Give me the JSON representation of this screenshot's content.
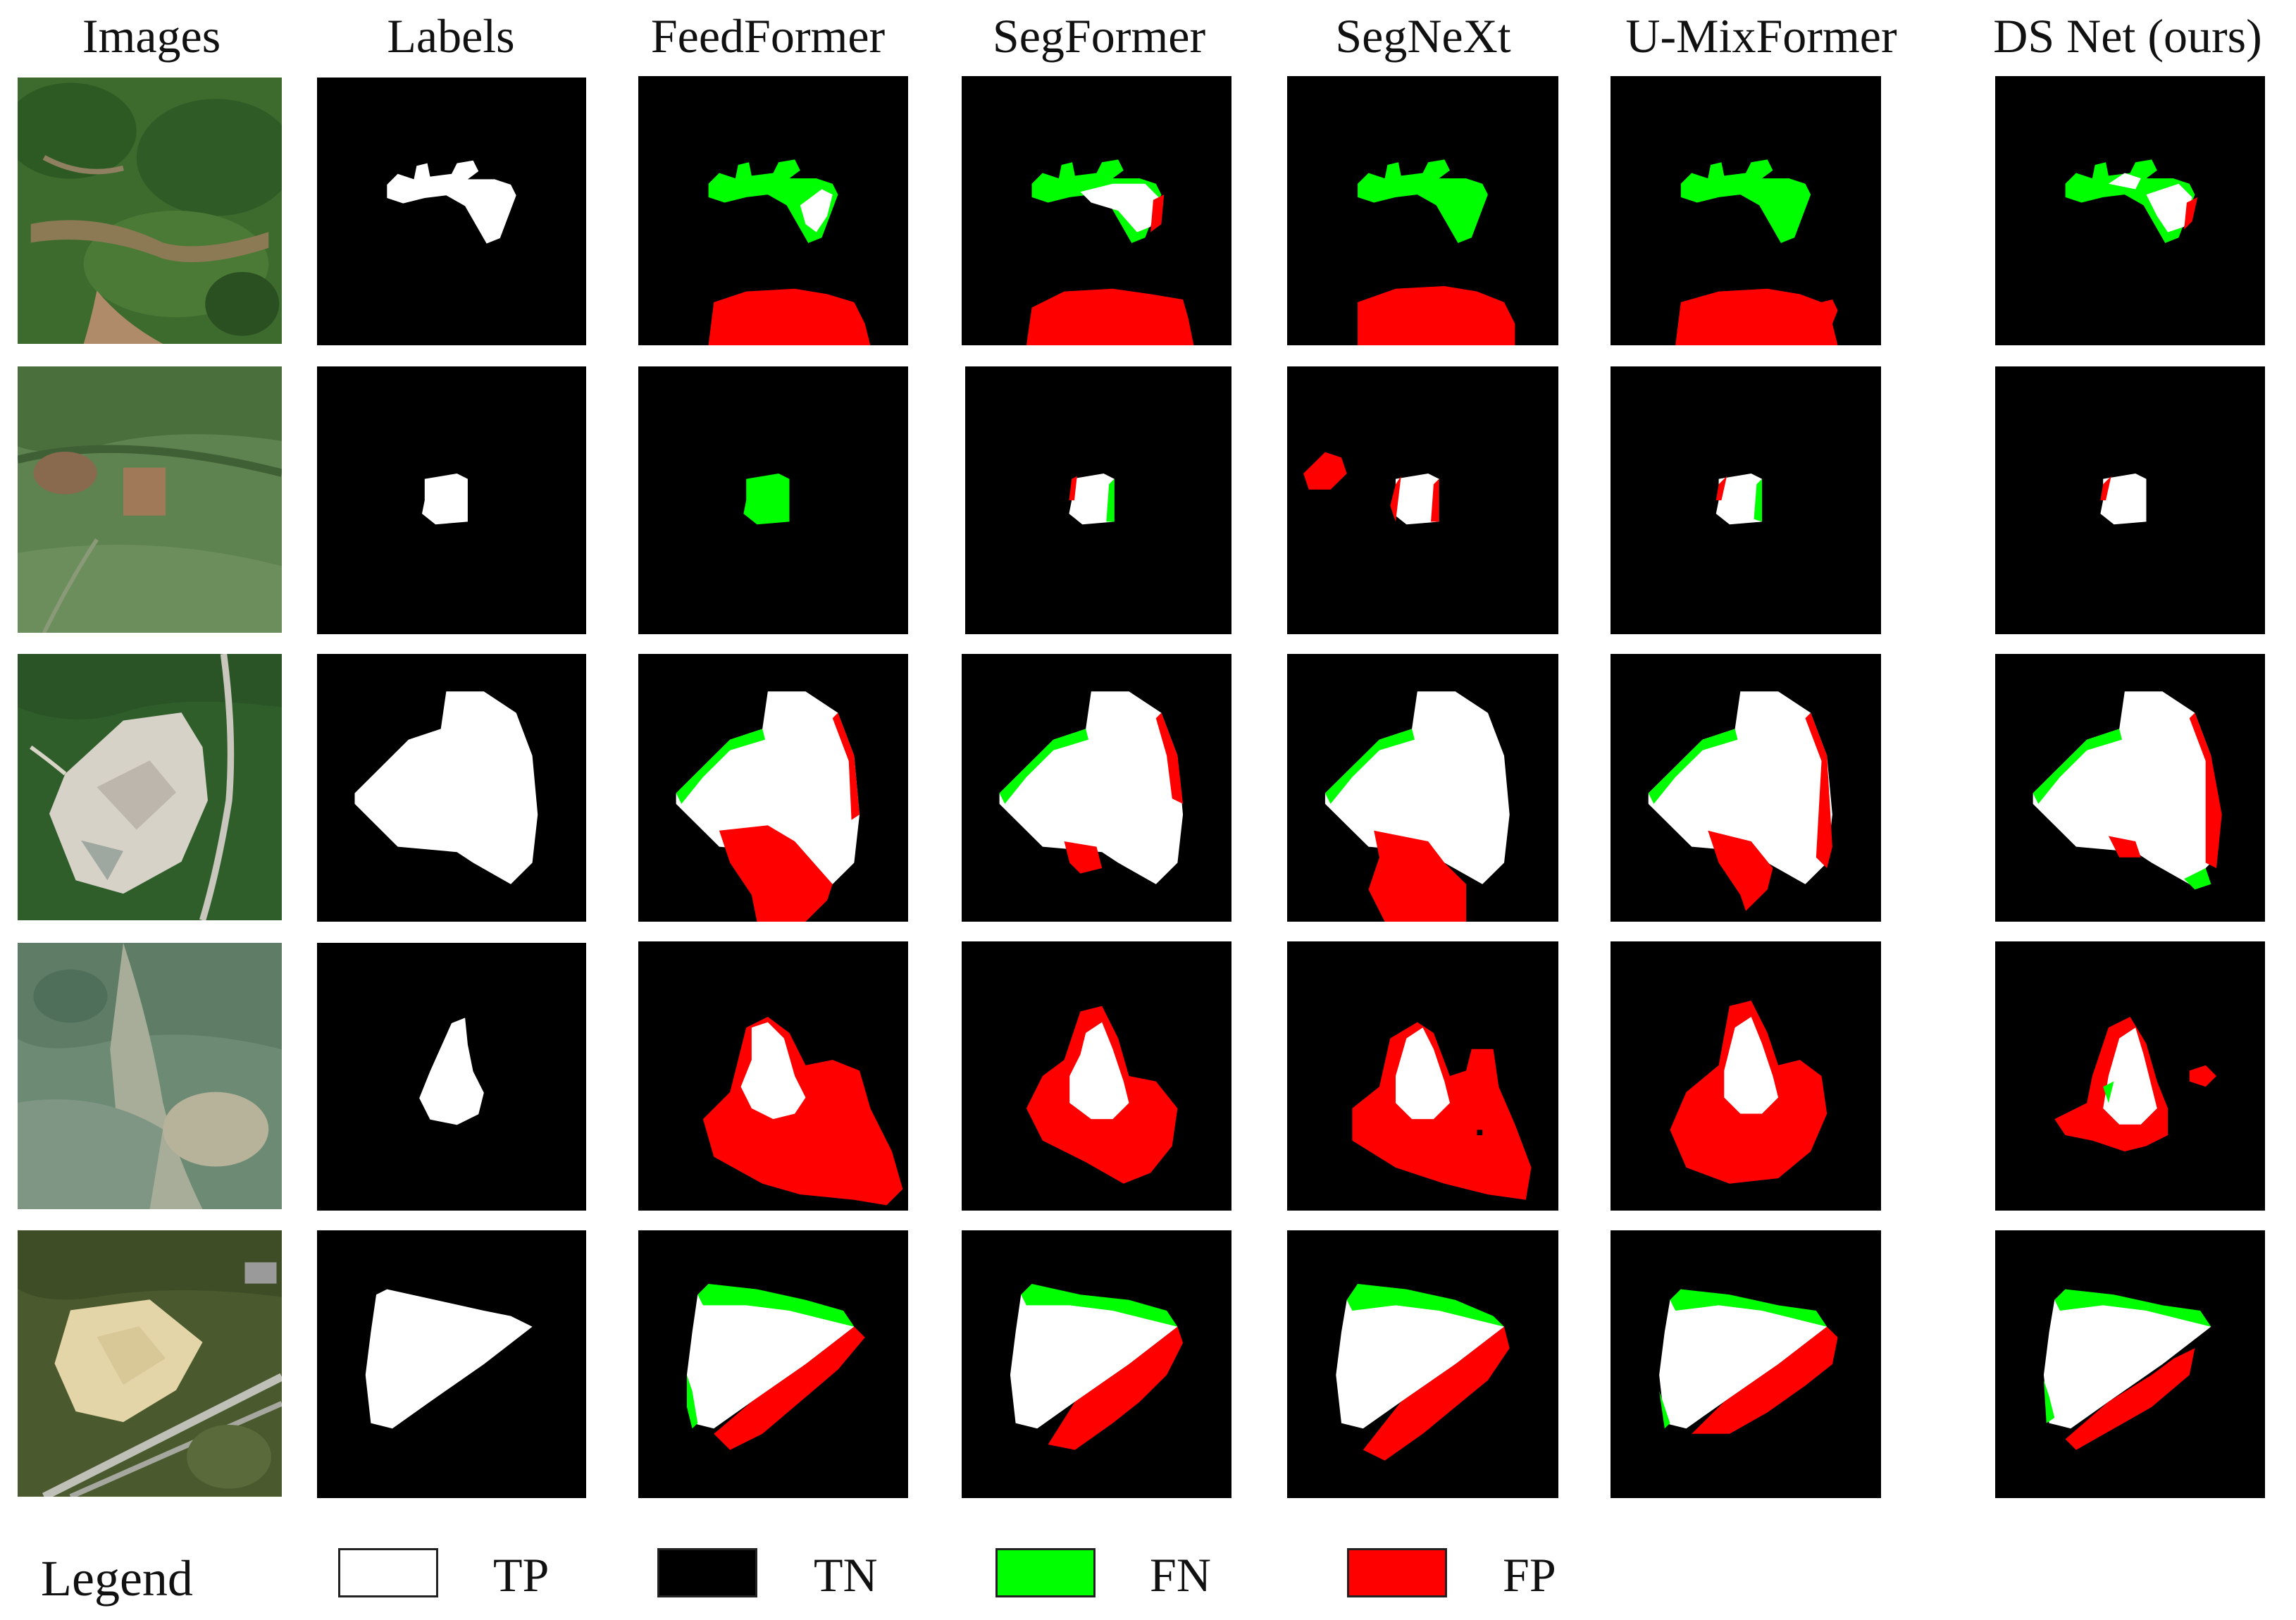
{
  "figure": {
    "columns": [
      "Images",
      "Labels",
      "FeedFormer",
      "SegFormer",
      "SegNeXt",
      "U-MixFormer",
      "DS Net (ours)"
    ],
    "legend": {
      "title": "Legend",
      "items": [
        {
          "label": "TP",
          "color": "#ffffff"
        },
        {
          "label": "TN",
          "color": "#000000"
        },
        {
          "label": "FN",
          "color": "#00ff00"
        },
        {
          "label": "FP",
          "color": "#ff0000"
        }
      ]
    },
    "colors": {
      "tp": "#ffffff",
      "tn": "#000000",
      "fn": "#00ff00",
      "fp": "#ff0000"
    },
    "row_count": 5
  }
}
